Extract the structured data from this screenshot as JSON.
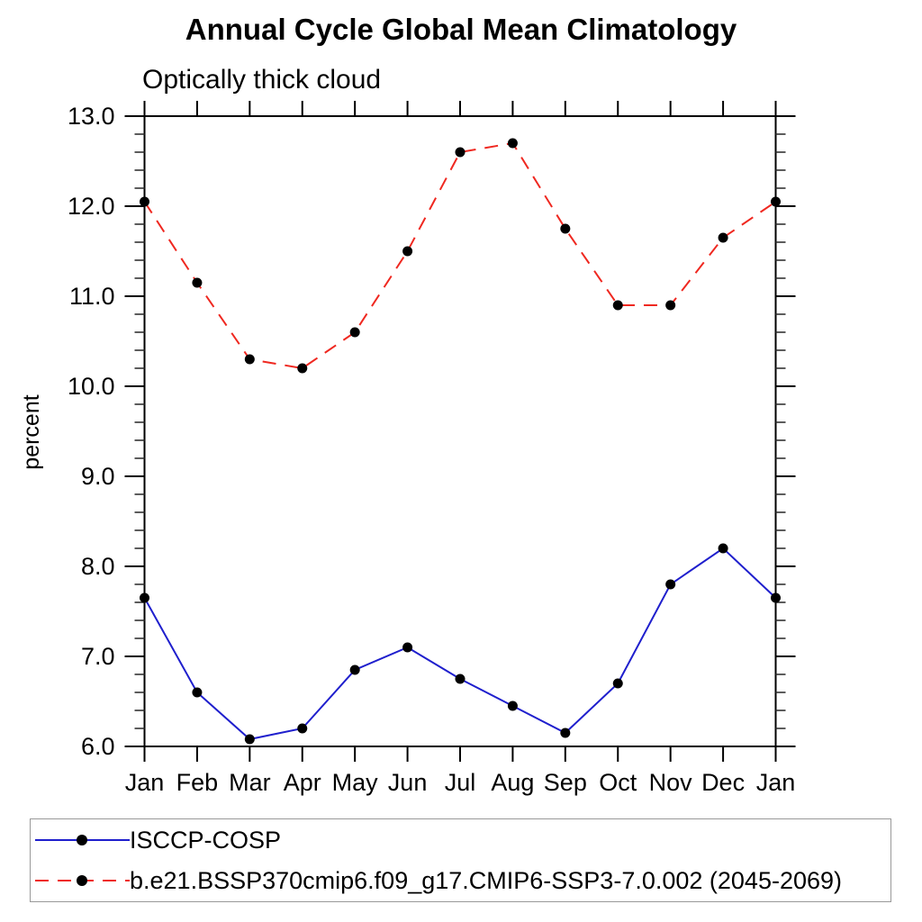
{
  "title": "Annual Cycle Global Mean Climatology",
  "subtitle": "Optically thick cloud",
  "chart_data": {
    "type": "line",
    "categories": [
      "Jan",
      "Feb",
      "Mar",
      "Apr",
      "May",
      "Jun",
      "Jul",
      "Aug",
      "Sep",
      "Oct",
      "Nov",
      "Dec",
      "Jan"
    ],
    "xlabel": "",
    "ylabel": "percent",
    "ylim": [
      6.0,
      13.0
    ],
    "ytick_major_interval": 1.0,
    "ytick_minor_interval": 0.2,
    "ytick_labels": [
      "6.0",
      "7.0",
      "8.0",
      "9.0",
      "10.0",
      "11.0",
      "12.0",
      "13.0"
    ],
    "grid": false,
    "legend_position": "bottom",
    "frame_color": "#000000",
    "marker_color": "#000000",
    "series": [
      {
        "name": "ISCCP-COSP",
        "color": "#1f1fcd",
        "line_style": "solid",
        "marker": "filled-circle",
        "values": [
          7.65,
          6.6,
          6.08,
          6.2,
          6.85,
          7.1,
          6.75,
          6.45,
          6.15,
          6.7,
          7.8,
          8.2,
          7.65
        ]
      },
      {
        "name": "b.e21.BSSP370cmip6.f09_g17.CMIP6-SSP3-7.0.002 (2045-2069)",
        "color": "#ef2820",
        "line_style": "dashed",
        "marker": "filled-circle",
        "values": [
          12.05,
          11.15,
          10.3,
          10.2,
          10.6,
          11.5,
          12.6,
          12.7,
          11.75,
          10.9,
          10.9,
          11.65,
          12.05
        ]
      }
    ]
  }
}
